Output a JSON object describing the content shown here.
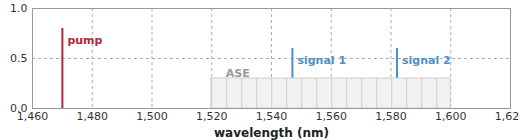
{
  "chart_data": {
    "type": "spectrum",
    "xlabel": "wavelength (nm)",
    "xlim": [
      1460,
      1620
    ],
    "xticks": [
      1460,
      1480,
      1500,
      1520,
      1540,
      1560,
      1580,
      1600,
      1620
    ],
    "ylim": [
      0,
      1
    ],
    "yticks": [
      0,
      0.5,
      1
    ],
    "grid": true,
    "series": [
      {
        "name": "pump",
        "type": "rule",
        "color": "#b8233a",
        "x": [
          1470
        ],
        "values": [
          0.8
        ]
      },
      {
        "name": "signal 1",
        "type": "rule",
        "color": "#4d8fc8",
        "x": [
          1547
        ],
        "values": [
          0.6
        ]
      },
      {
        "name": "signal 2",
        "type": "rule",
        "color": "#4d8fc8",
        "x": [
          1582
        ],
        "values": [
          0.6
        ]
      },
      {
        "name": "ASE",
        "type": "area",
        "color": "#999999",
        "x": [
          1520,
          1600
        ],
        "values": [
          0.3,
          0.3
        ]
      }
    ]
  }
}
